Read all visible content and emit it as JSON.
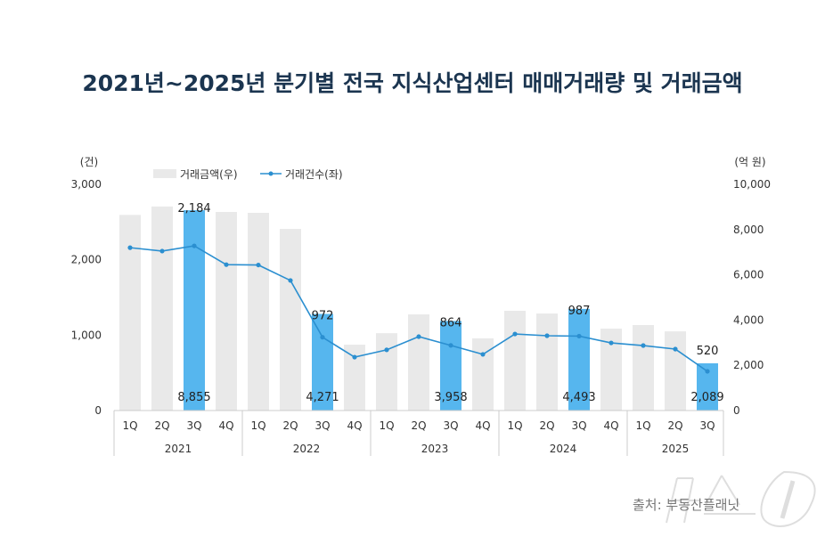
{
  "title": "2021년~2025년 분기별 전국 지식산업센터 매매거래량 및 거래금액",
  "source": "출처: 부동산플래닛",
  "watermark": "뉴스1",
  "chart_data": {
    "type": "bar+line",
    "title": "2021년~2025년 분기별 전국 지식산업센터 매매거래량 및 거래금액",
    "left_axis": {
      "unit": "(건)",
      "range": [
        0,
        3000
      ],
      "ticks": [
        "0",
        "1,000",
        "2,000",
        "3,000"
      ]
    },
    "right_axis": {
      "unit": "(억 원)",
      "range": [
        0,
        10000
      ],
      "ticks": [
        "0",
        "2,000",
        "4,000",
        "6,000",
        "8,000",
        "10,000"
      ]
    },
    "years": [
      "2021",
      "2022",
      "2023",
      "2024",
      "2025"
    ],
    "categories": [
      "1Q",
      "2Q",
      "3Q",
      "4Q",
      "1Q",
      "2Q",
      "3Q",
      "4Q",
      "1Q",
      "2Q",
      "3Q",
      "4Q",
      "1Q",
      "2Q",
      "3Q",
      "4Q",
      "1Q",
      "2Q",
      "3Q"
    ],
    "year_of_category": [
      "2021",
      "2021",
      "2021",
      "2021",
      "2022",
      "2022",
      "2022",
      "2022",
      "2023",
      "2023",
      "2023",
      "2023",
      "2024",
      "2024",
      "2024",
      "2024",
      "2025",
      "2025",
      "2025"
    ],
    "legend_placement": "top-left",
    "grid": false,
    "series": [
      {
        "name": "거래금액(우)",
        "type": "bar",
        "axis": "right",
        "color": "#e9e9e9",
        "highlight_color": "#56b6ee",
        "values": [
          8650,
          9020,
          8855,
          8780,
          8740,
          8030,
          4271,
          2910,
          3420,
          4250,
          3958,
          3190,
          4410,
          4290,
          4493,
          3620,
          3780,
          3500,
          2089
        ],
        "highlight": [
          false,
          false,
          true,
          false,
          false,
          false,
          true,
          false,
          false,
          false,
          true,
          false,
          false,
          false,
          true,
          false,
          false,
          false,
          true
        ],
        "labels": [
          "",
          "",
          "8,855",
          "",
          "",
          "",
          "4,271",
          "",
          "",
          "",
          "3,958",
          "",
          "",
          "",
          "4,493",
          "",
          "",
          "",
          "2,089"
        ]
      },
      {
        "name": "거래건수(좌)",
        "type": "line",
        "axis": "left",
        "color": "#2b8fd0",
        "values": [
          2160,
          2115,
          2184,
          1935,
          1930,
          1725,
          972,
          708,
          805,
          980,
          864,
          745,
          1015,
          992,
          987,
          897,
          862,
          815,
          520
        ],
        "labels": [
          "",
          "",
          "2,184",
          "",
          "",
          "",
          "972",
          "",
          "",
          "",
          "864",
          "",
          "",
          "",
          "987",
          "",
          "",
          "",
          "520"
        ]
      }
    ]
  }
}
